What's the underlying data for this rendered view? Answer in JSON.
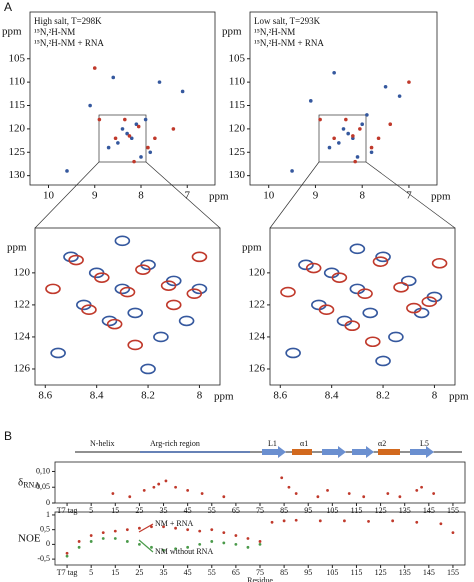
{
  "figure_label_a": "A",
  "figure_label_b": "B",
  "chart_data": [
    {
      "type": "scatter",
      "annotations": [
        "High salt, T=298K",
        "¹⁵N,²H-NM",
        "¹⁵N,²H-NM + RNA"
      ],
      "xlabel": "ppm",
      "ylabel": "ppm",
      "xlim": [
        10.4,
        6.4
      ],
      "ylim": [
        132,
        95
      ],
      "xticks": [
        10,
        9,
        8,
        7
      ],
      "yticks": [
        105,
        110,
        115,
        120,
        125,
        130
      ],
      "series": [
        {
          "name": "¹⁵N,²H-NM",
          "color": "#35589e",
          "x": [
            8.3,
            8.1,
            8.5,
            7.9,
            8.7,
            8.2,
            7.6,
            9.1,
            7.1,
            8.0,
            8.4,
            8.6,
            7.8,
            9.6
          ],
          "values": [
            121,
            119,
            123,
            118,
            124,
            122,
            110,
            115,
            112,
            126,
            120,
            109,
            125,
            129
          ]
        },
        {
          "name": "¹⁵N,²H-NM + RNA",
          "color": "#c0392b",
          "x": [
            8.25,
            8.05,
            8.55,
            7.85,
            8.35,
            7.3,
            8.9,
            8.15,
            7.7,
            9.0
          ],
          "values": [
            121.5,
            119.5,
            122,
            124,
            118,
            120,
            118,
            127,
            122,
            107
          ]
        }
      ]
    },
    {
      "type": "scatter",
      "annotations": [
        "Low salt, T=293K",
        "¹⁵N,²H-NM",
        "¹⁵N,²H-NM + RNA"
      ],
      "xlabel": "ppm",
      "ylabel": "ppm",
      "xlim": [
        10.4,
        6.4
      ],
      "ylim": [
        132,
        95
      ],
      "xticks": [
        10,
        9,
        8,
        7
      ],
      "yticks": [
        105,
        110,
        115,
        120,
        125,
        130
      ],
      "series": [
        {
          "name": "¹⁵N,²H-NM",
          "color": "#35589e",
          "x": [
            8.3,
            8.0,
            8.5,
            7.9,
            8.7,
            8.2,
            7.5,
            9.1,
            7.2,
            8.1,
            8.4,
            8.6,
            7.8,
            9.5
          ],
          "values": [
            121,
            119,
            123,
            117,
            124,
            122,
            111,
            114,
            113,
            126,
            120,
            108,
            125,
            129
          ]
        },
        {
          "name": "¹⁵N,²H-NM + RNA",
          "color": "#c0392b",
          "x": [
            8.2,
            8.05,
            8.6,
            7.8,
            8.35,
            7.4,
            8.9,
            8.15,
            7.65,
            7.0
          ],
          "values": [
            121.5,
            120,
            122,
            124,
            118,
            119,
            118,
            127,
            122,
            110
          ]
        }
      ]
    },
    {
      "type": "scatter",
      "xlabel": "ppm",
      "ylabel": "ppm",
      "xlim": [
        8.64,
        7.92
      ],
      "ylim": [
        127,
        117.2
      ],
      "xticks": [
        8.6,
        8.4,
        8.2,
        8.0
      ],
      "yticks": [
        120,
        122,
        124,
        126
      ],
      "series": [
        {
          "name": "¹⁵N,²H-NM",
          "color": "#35589e",
          "x": [
            8.5,
            8.4,
            8.3,
            8.2,
            8.1,
            8.0,
            8.45,
            8.35,
            8.25,
            8.15,
            8.55,
            8.05,
            8.3,
            8.2
          ],
          "values": [
            119,
            120,
            121,
            119.5,
            120.5,
            121,
            122,
            123,
            122.5,
            124,
            125,
            123,
            118,
            126
          ]
        },
        {
          "name": "¹⁵N,²H-NM + RNA",
          "color": "#c0392b",
          "x": [
            8.48,
            8.38,
            8.28,
            8.22,
            8.12,
            8.02,
            8.43,
            8.33,
            8.57,
            8.1,
            8.25,
            8.0
          ],
          "values": [
            119.2,
            120.3,
            121.2,
            119.8,
            120.8,
            121.3,
            122.3,
            123.2,
            121,
            122,
            124.5,
            119
          ]
        }
      ]
    },
    {
      "type": "scatter",
      "xlabel": "ppm",
      "ylabel": "ppm",
      "xlim": [
        8.64,
        7.92
      ],
      "ylim": [
        127,
        117.2
      ],
      "xticks": [
        8.6,
        8.4,
        8.2,
        8.0
      ],
      "yticks": [
        120,
        122,
        124,
        126
      ],
      "series": [
        {
          "name": "¹⁵N,²H-NM",
          "color": "#35589e",
          "x": [
            8.5,
            8.4,
            8.3,
            8.2,
            8.1,
            8.0,
            8.45,
            8.35,
            8.25,
            8.15,
            8.55,
            8.05,
            8.3,
            8.2
          ],
          "values": [
            119.5,
            120,
            121,
            119,
            120.5,
            121.5,
            122,
            123,
            122.5,
            124,
            125,
            122.5,
            118.5,
            125.5
          ]
        },
        {
          "name": "¹⁵N,²H-NM + RNA",
          "color": "#c0392b",
          "x": [
            8.47,
            8.37,
            8.27,
            8.21,
            8.13,
            8.02,
            8.42,
            8.32,
            8.57,
            8.08,
            8.24,
            7.98
          ],
          "values": [
            119.7,
            120.3,
            121.3,
            119.3,
            120.9,
            121.8,
            122.3,
            123.3,
            121.2,
            122.2,
            124.3,
            119.4
          ]
        }
      ]
    },
    {
      "type": "scatter",
      "ylabel": "δ",
      "ylabel_sub": "RNA",
      "structure_labels": [
        "N-helix",
        "Arg-rich region",
        "L1",
        "α1",
        "α2",
        "L5"
      ],
      "xlim": [
        -10,
        160
      ],
      "ylim": [
        0,
        0.13
      ],
      "xticks": [
        {
          "value": -5,
          "label": "T7 tag"
        },
        5,
        15,
        25,
        35,
        45,
        55,
        65,
        75,
        85,
        95,
        105,
        115,
        125,
        135,
        145,
        155
      ],
      "yticks": [
        {
          "value": 0.1,
          "label": "0,10"
        },
        {
          "value": 0.05,
          "label": "0,05"
        },
        0
      ],
      "series": [
        {
          "color": "#c0392b",
          "x": [
            14,
            21,
            27,
            31,
            33,
            36,
            40,
            45,
            51,
            60,
            84,
            87,
            90,
            99,
            103,
            112,
            118,
            128,
            133,
            140,
            142,
            147
          ],
          "values": [
            0.03,
            0.02,
            0.04,
            0.05,
            0.06,
            0.07,
            0.05,
            0.04,
            0.03,
            0.02,
            0.08,
            0.05,
            0.03,
            0.02,
            0.04,
            0.03,
            0.02,
            0.03,
            0.02,
            0.04,
            0.05,
            0.03
          ]
        }
      ]
    },
    {
      "type": "scatter",
      "ylabel": "NOE",
      "xlabel": "Residue",
      "annotations": [
        "NM + RNA",
        "NM without RNA"
      ],
      "xlim": [
        -10,
        160
      ],
      "ylim": [
        -0.7,
        1.1
      ],
      "xticks": [
        {
          "value": -5,
          "label": "T7 tag"
        },
        5,
        15,
        25,
        35,
        45,
        55,
        65,
        75,
        85,
        95,
        105,
        115,
        125,
        135,
        145,
        155
      ],
      "yticks": [
        1,
        {
          "value": 0.5,
          "label": "0,5"
        },
        0,
        {
          "value": -0.5,
          "label": "-0,5"
        }
      ],
      "series": [
        {
          "name": "NM + RNA",
          "color": "#c0392b",
          "x": [
            -5,
            0,
            5,
            10,
            15,
            20,
            25,
            30,
            35,
            40,
            45,
            50,
            55,
            60,
            65,
            70,
            75,
            80,
            85,
            90,
            100,
            110,
            120,
            130,
            140,
            150,
            155
          ],
          "values": [
            -0.3,
            0.1,
            0.3,
            0.4,
            0.45,
            0.5,
            0.55,
            0.6,
            0.6,
            0.55,
            0.5,
            0.45,
            0.5,
            0.4,
            0.3,
            0.2,
            0.1,
            0.75,
            0.8,
            0.82,
            0.8,
            0.8,
            0.78,
            0.8,
            0.75,
            0.7,
            0.4
          ]
        },
        {
          "name": "NM without RNA",
          "color": "#4a9a4a",
          "x": [
            -5,
            0,
            5,
            10,
            15,
            20,
            25,
            30,
            35,
            40,
            45,
            50,
            55,
            60,
            65,
            70,
            75
          ],
          "values": [
            -0.4,
            -0.1,
            0.1,
            0.2,
            0.2,
            0.1,
            0,
            -0.1,
            -0.2,
            -0.15,
            -0.1,
            0,
            0.1,
            0.05,
            0,
            -0.1,
            0
          ]
        }
      ]
    }
  ]
}
